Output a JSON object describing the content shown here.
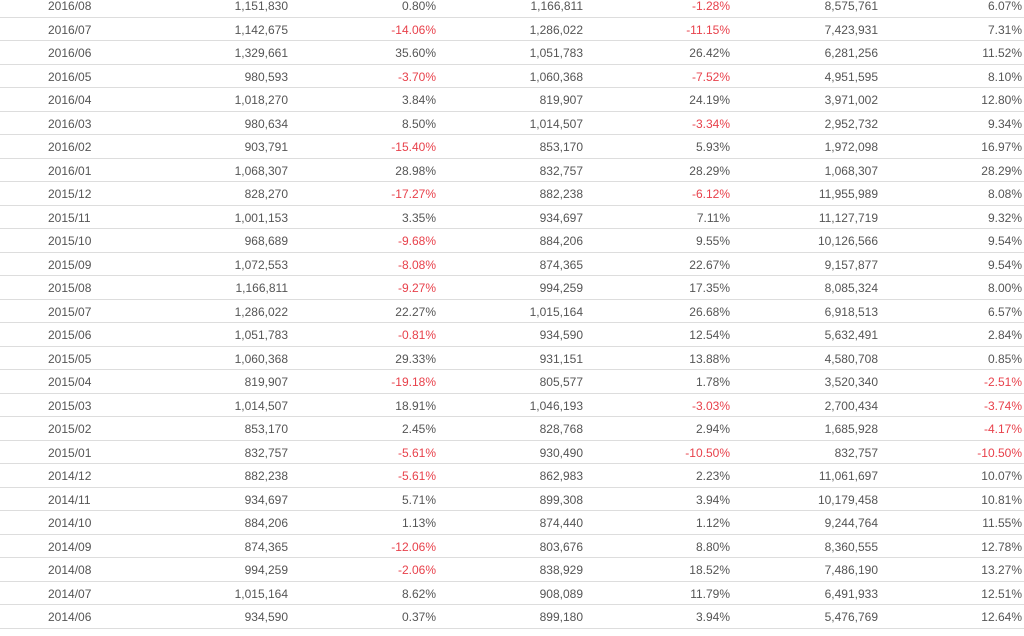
{
  "colors": {
    "text": "#555555",
    "negative": "#e8414b",
    "border": "#dddddd"
  },
  "rows": [
    [
      "2016/08",
      "1,151,830",
      "0.80%",
      "1,166,811",
      "-1.28%",
      "8,575,761",
      "6.07%"
    ],
    [
      "2016/07",
      "1,142,675",
      "-14.06%",
      "1,286,022",
      "-11.15%",
      "7,423,931",
      "7.31%"
    ],
    [
      "2016/06",
      "1,329,661",
      "35.60%",
      "1,051,783",
      "26.42%",
      "6,281,256",
      "11.52%"
    ],
    [
      "2016/05",
      "980,593",
      "-3.70%",
      "1,060,368",
      "-7.52%",
      "4,951,595",
      "8.10%"
    ],
    [
      "2016/04",
      "1,018,270",
      "3.84%",
      "819,907",
      "24.19%",
      "3,971,002",
      "12.80%"
    ],
    [
      "2016/03",
      "980,634",
      "8.50%",
      "1,014,507",
      "-3.34%",
      "2,952,732",
      "9.34%"
    ],
    [
      "2016/02",
      "903,791",
      "-15.40%",
      "853,170",
      "5.93%",
      "1,972,098",
      "16.97%"
    ],
    [
      "2016/01",
      "1,068,307",
      "28.98%",
      "832,757",
      "28.29%",
      "1,068,307",
      "28.29%"
    ],
    [
      "2015/12",
      "828,270",
      "-17.27%",
      "882,238",
      "-6.12%",
      "11,955,989",
      "8.08%"
    ],
    [
      "2015/11",
      "1,001,153",
      "3.35%",
      "934,697",
      "7.11%",
      "11,127,719",
      "9.32%"
    ],
    [
      "2015/10",
      "968,689",
      "-9.68%",
      "884,206",
      "9.55%",
      "10,126,566",
      "9.54%"
    ],
    [
      "2015/09",
      "1,072,553",
      "-8.08%",
      "874,365",
      "22.67%",
      "9,157,877",
      "9.54%"
    ],
    [
      "2015/08",
      "1,166,811",
      "-9.27%",
      "994,259",
      "17.35%",
      "8,085,324",
      "8.00%"
    ],
    [
      "2015/07",
      "1,286,022",
      "22.27%",
      "1,015,164",
      "26.68%",
      "6,918,513",
      "6.57%"
    ],
    [
      "2015/06",
      "1,051,783",
      "-0.81%",
      "934,590",
      "12.54%",
      "5,632,491",
      "2.84%"
    ],
    [
      "2015/05",
      "1,060,368",
      "29.33%",
      "931,151",
      "13.88%",
      "4,580,708",
      "0.85%"
    ],
    [
      "2015/04",
      "819,907",
      "-19.18%",
      "805,577",
      "1.78%",
      "3,520,340",
      "-2.51%"
    ],
    [
      "2015/03",
      "1,014,507",
      "18.91%",
      "1,046,193",
      "-3.03%",
      "2,700,434",
      "-3.74%"
    ],
    [
      "2015/02",
      "853,170",
      "2.45%",
      "828,768",
      "2.94%",
      "1,685,928",
      "-4.17%"
    ],
    [
      "2015/01",
      "832,757",
      "-5.61%",
      "930,490",
      "-10.50%",
      "832,757",
      "-10.50%"
    ],
    [
      "2014/12",
      "882,238",
      "-5.61%",
      "862,983",
      "2.23%",
      "11,061,697",
      "10.07%"
    ],
    [
      "2014/11",
      "934,697",
      "5.71%",
      "899,308",
      "3.94%",
      "10,179,458",
      "10.81%"
    ],
    [
      "2014/10",
      "884,206",
      "1.13%",
      "874,440",
      "1.12%",
      "9,244,764",
      "11.55%"
    ],
    [
      "2014/09",
      "874,365",
      "-12.06%",
      "803,676",
      "8.80%",
      "8,360,555",
      "12.78%"
    ],
    [
      "2014/08",
      "994,259",
      "-2.06%",
      "838,929",
      "18.52%",
      "7,486,190",
      "13.27%"
    ],
    [
      "2014/07",
      "1,015,164",
      "8.62%",
      "908,089",
      "11.79%",
      "6,491,933",
      "12.51%"
    ],
    [
      "2014/06",
      "934,590",
      "0.37%",
      "899,180",
      "3.94%",
      "5,476,769",
      "12.64%"
    ]
  ]
}
